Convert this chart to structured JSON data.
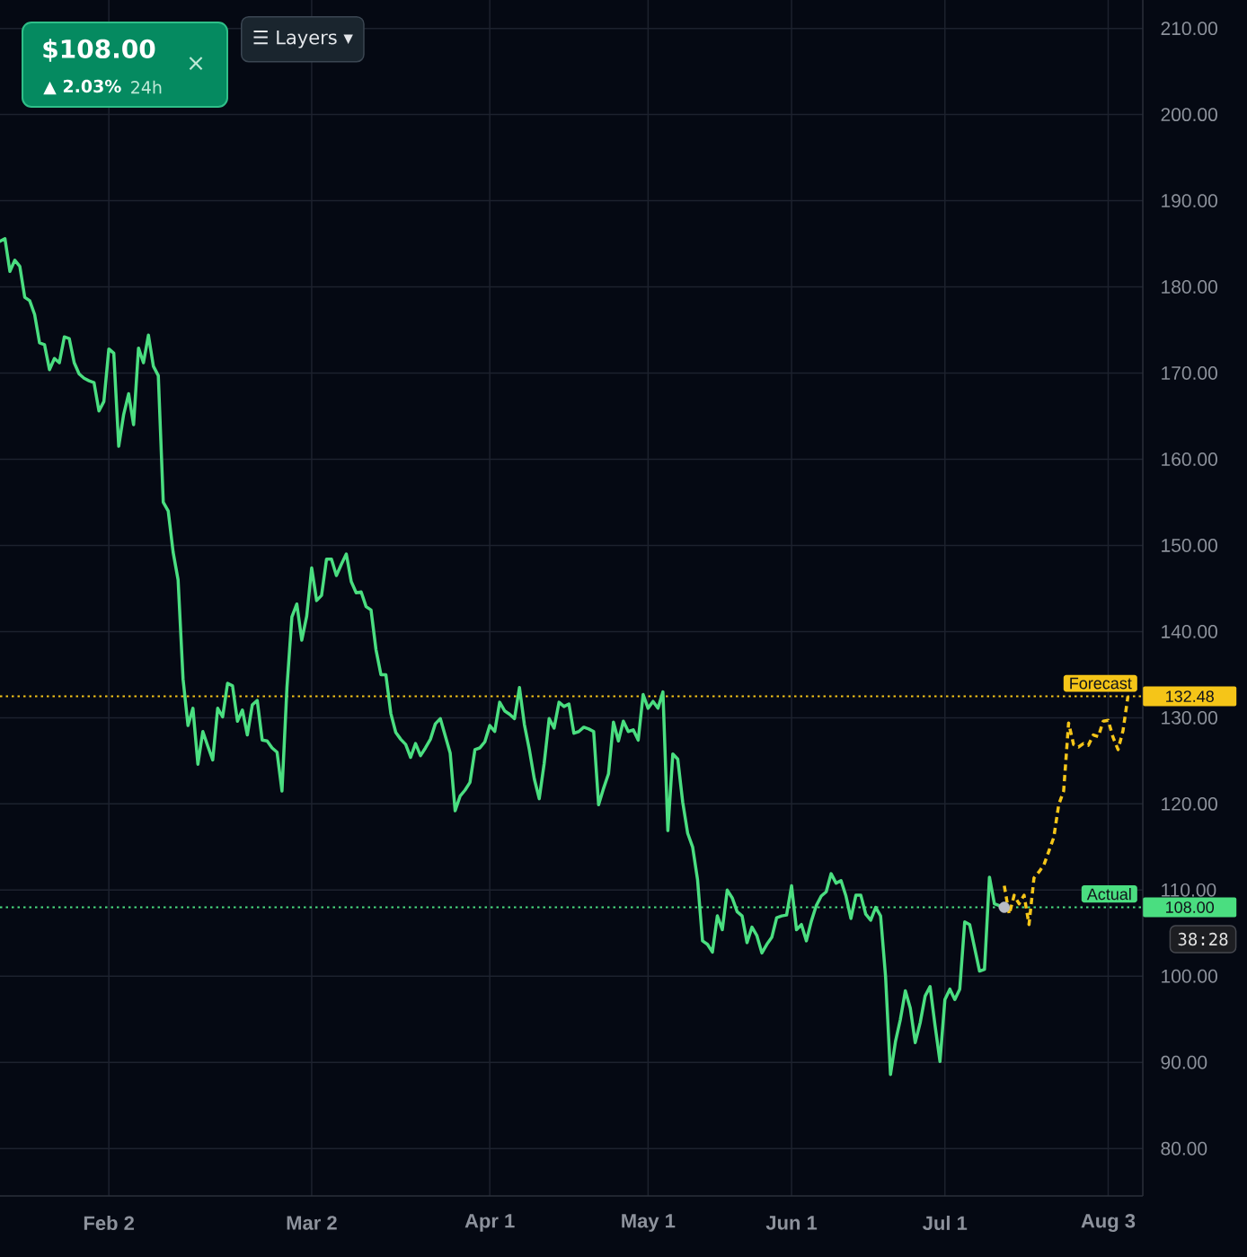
{
  "chart_data": {
    "type": "line",
    "categories": [
      null,
      null,
      null,
      null,
      null,
      null,
      null,
      null,
      null,
      null,
      null,
      null,
      null,
      null,
      null,
      null,
      null,
      null,
      null,
      null,
      null,
      null,
      "Feb 2",
      null,
      null,
      null,
      null,
      null,
      null,
      null,
      null,
      null,
      null,
      null,
      null,
      null,
      null,
      null,
      null,
      null,
      null,
      null,
      null,
      null,
      null,
      null,
      null,
      null,
      null,
      null,
      null,
      null,
      null,
      null,
      null,
      null,
      null,
      null,
      null,
      null,
      null,
      null,
      null,
      "Mar 2",
      null,
      null,
      null,
      null,
      null,
      null,
      null,
      null,
      null,
      null,
      null,
      null,
      null,
      null,
      null,
      null,
      null,
      null,
      null,
      null,
      null,
      null,
      null,
      null,
      null,
      null,
      null,
      null,
      null,
      null,
      null,
      null,
      null,
      null,
      null,
      "Apr 1",
      null,
      null,
      null,
      null,
      null,
      null,
      null,
      null,
      null,
      null,
      null,
      null,
      null,
      null,
      null,
      null,
      null,
      null,
      null,
      null,
      null,
      null,
      null,
      null,
      null,
      null,
      null,
      null,
      null,
      null,
      null,
      "May 1",
      null,
      null,
      null,
      null,
      null,
      null,
      null,
      null,
      null,
      null,
      null,
      null,
      null,
      null,
      null,
      null,
      null,
      null,
      null,
      null,
      null,
      null,
      null,
      null,
      null,
      null,
      null,
      null,
      "Jun 1",
      null,
      null,
      null,
      null,
      null,
      null,
      null,
      null,
      null,
      null,
      null,
      null,
      null,
      null,
      null,
      null,
      null,
      null,
      null,
      null,
      null,
      null,
      null,
      null,
      null,
      null,
      null,
      null,
      null,
      null,
      "Jul 1",
      null,
      null,
      null,
      null,
      null,
      null,
      null,
      null,
      null,
      null,
      null,
      null,
      null,
      null,
      null,
      null,
      null,
      null,
      null,
      null,
      null,
      null,
      null,
      null,
      null,
      null,
      null,
      null,
      null,
      null,
      null,
      null,
      "Aug 3",
      null,
      null,
      null,
      null,
      null,
      null,
      null
    ],
    "ylim": [
      74.5,
      213.3
    ],
    "yticks": [
      {
        "value": 80,
        "label": "80.00"
      },
      {
        "value": 90,
        "label": "90.00"
      },
      {
        "value": 100,
        "label": "100.00"
      },
      {
        "value": 110,
        "label": "110.00"
      },
      {
        "value": 120,
        "label": "120.00"
      },
      {
        "value": 130,
        "label": "130.00"
      },
      {
        "value": 140,
        "label": "140.00"
      },
      {
        "value": 150,
        "label": "150.00"
      },
      {
        "value": 160,
        "label": "160.00"
      },
      {
        "value": 170,
        "label": "170.00"
      },
      {
        "value": 180,
        "label": "180.00"
      },
      {
        "value": 190,
        "label": "190.00"
      },
      {
        "value": 200,
        "label": "200.00"
      },
      {
        "value": 210,
        "label": "210.00"
      }
    ],
    "grid": true,
    "series": [
      {
        "color": "#4ade80",
        "line_style": "solid",
        "values": [
          185.3,
          185.6,
          181.8,
          183.1,
          182.4,
          178.8,
          178.4,
          176.8,
          173.5,
          173.3,
          170.4,
          171.7,
          171.2,
          174.2,
          174.0,
          171.2,
          169.9,
          169.4,
          169.1,
          168.9,
          165.6,
          166.7,
          172.8,
          172.3,
          161.5,
          165.2,
          167.6,
          164.0,
          172.9,
          171.2,
          174.4,
          170.8,
          169.7,
          155.0,
          154.0,
          149.2,
          146.0,
          134.5,
          129.1,
          131.1,
          124.6,
          128.4,
          126.7,
          125.1,
          131.1,
          130.1,
          134.0,
          133.7,
          129.6,
          130.9,
          128.0,
          131.5,
          132.0,
          127.4,
          127.3,
          126.5,
          126.0,
          121.5,
          133.5,
          141.7,
          143.2,
          139.0,
          141.8,
          147.4,
          143.6,
          144.2,
          148.4,
          148.4,
          146.5,
          147.8,
          149.0,
          145.8,
          144.5,
          144.6,
          142.9,
          142.5,
          137.9,
          135.0,
          135.0,
          130.5,
          128.3,
          127.5,
          126.9,
          125.4,
          127.0,
          125.6,
          126.5,
          127.5,
          129.3,
          129.9,
          127.9,
          125.9,
          119.2,
          120.9,
          121.6,
          122.5,
          126.3,
          126.5,
          127.2,
          129.1,
          128.4,
          131.8,
          130.8,
          130.4,
          129.9,
          133.5,
          129.2,
          126.3,
          122.9,
          120.6,
          124.7,
          129.9,
          128.8,
          131.8,
          131.3,
          131.6,
          128.2,
          128.4,
          128.9,
          128.7,
          128.4,
          119.9,
          121.8,
          123.5,
          129.5,
          127.3,
          129.6,
          128.4,
          128.6,
          127.4,
          132.7,
          131.1,
          131.9,
          131.1,
          133.0,
          116.9,
          125.8,
          125.2,
          120.2,
          116.6,
          115.0,
          111.2,
          104.1,
          103.7,
          102.8,
          107.0,
          105.4,
          110.0,
          109.1,
          107.5,
          107.0,
          103.9,
          105.7,
          104.7,
          102.7,
          103.7,
          104.5,
          106.8,
          107.0,
          107.1,
          110.5,
          105.4,
          106.0,
          104.1,
          106.4,
          108.2,
          109.3,
          109.8,
          111.9,
          110.8,
          111.1,
          109.3,
          106.7,
          109.4,
          109.4,
          107.2,
          106.5,
          108.0,
          107.0,
          100.0,
          88.6,
          92.4,
          95.0,
          98.3,
          96.3,
          92.3,
          94.6,
          97.7,
          98.8,
          94.3,
          90.1,
          97.3,
          98.5,
          97.3,
          98.5,
          106.3,
          106.0,
          103.3,
          100.6,
          100.8,
          111.5,
          108.4,
          108.2,
          108.0,
          null,
          null,
          null,
          null,
          null,
          null,
          null,
          null,
          null,
          null,
          null,
          null,
          null,
          null,
          null,
          null,
          null,
          null,
          null,
          null,
          null,
          null,
          null,
          null,
          null,
          null,
          null,
          null
        ]
      },
      {
        "type": "scatter",
        "color": "#b9bcc5",
        "marker": "circle",
        "values": [
          null,
          null,
          null,
          null,
          null,
          null,
          null,
          null,
          null,
          null,
          null,
          null,
          null,
          null,
          null,
          null,
          null,
          null,
          null,
          null,
          null,
          null,
          null,
          null,
          null,
          null,
          null,
          null,
          null,
          null,
          null,
          null,
          null,
          null,
          null,
          null,
          null,
          null,
          null,
          null,
          null,
          null,
          null,
          null,
          null,
          null,
          null,
          null,
          null,
          null,
          null,
          null,
          null,
          null,
          null,
          null,
          null,
          null,
          null,
          null,
          null,
          null,
          null,
          null,
          null,
          null,
          null,
          null,
          null,
          null,
          null,
          null,
          null,
          null,
          null,
          null,
          null,
          null,
          null,
          null,
          null,
          null,
          null,
          null,
          null,
          null,
          null,
          null,
          null,
          null,
          null,
          null,
          null,
          null,
          null,
          null,
          null,
          null,
          null,
          null,
          null,
          null,
          null,
          null,
          null,
          null,
          null,
          null,
          null,
          null,
          null,
          null,
          null,
          null,
          null,
          null,
          null,
          null,
          null,
          null,
          null,
          null,
          null,
          null,
          null,
          null,
          null,
          null,
          null,
          null,
          null,
          null,
          null,
          null,
          null,
          null,
          null,
          null,
          null,
          null,
          null,
          null,
          null,
          null,
          null,
          null,
          null,
          null,
          null,
          null,
          null,
          null,
          null,
          null,
          null,
          null,
          null,
          null,
          null,
          null,
          null,
          null,
          null,
          null,
          null,
          null,
          null,
          null,
          null,
          null,
          null,
          null,
          null,
          null,
          null,
          null,
          null,
          null,
          null,
          null,
          null,
          null,
          null,
          null,
          null,
          null,
          null,
          null,
          null,
          null,
          null,
          null,
          null,
          null,
          null,
          null,
          null,
          null,
          null,
          null,
          null,
          null,
          null,
          108.0,
          null,
          null,
          null,
          null,
          null,
          null,
          null,
          null,
          null,
          null,
          null,
          null,
          null,
          null,
          null,
          null,
          null,
          null,
          null,
          null,
          null,
          null,
          null,
          null,
          null,
          null,
          null,
          null
        ]
      },
      {
        "color": "#f5c518",
        "line_style": "dashed",
        "values": [
          null,
          null,
          null,
          null,
          null,
          null,
          null,
          null,
          null,
          null,
          null,
          null,
          null,
          null,
          null,
          null,
          null,
          null,
          null,
          null,
          null,
          null,
          null,
          null,
          null,
          null,
          null,
          null,
          null,
          null,
          null,
          null,
          null,
          null,
          null,
          null,
          null,
          null,
          null,
          null,
          null,
          null,
          null,
          null,
          null,
          null,
          null,
          null,
          null,
          null,
          null,
          null,
          null,
          null,
          null,
          null,
          null,
          null,
          null,
          null,
          null,
          null,
          null,
          null,
          null,
          null,
          null,
          null,
          null,
          null,
          null,
          null,
          null,
          null,
          null,
          null,
          null,
          null,
          null,
          null,
          null,
          null,
          null,
          null,
          null,
          null,
          null,
          null,
          null,
          null,
          null,
          null,
          null,
          null,
          null,
          null,
          null,
          null,
          null,
          null,
          null,
          null,
          null,
          null,
          null,
          null,
          null,
          null,
          null,
          null,
          null,
          null,
          null,
          null,
          null,
          null,
          null,
          null,
          null,
          null,
          null,
          null,
          null,
          null,
          null,
          null,
          null,
          null,
          null,
          null,
          null,
          null,
          null,
          null,
          null,
          null,
          null,
          null,
          null,
          null,
          null,
          null,
          null,
          null,
          null,
          null,
          null,
          null,
          null,
          null,
          null,
          null,
          null,
          null,
          null,
          null,
          null,
          null,
          null,
          null,
          null,
          null,
          null,
          null,
          null,
          null,
          null,
          null,
          null,
          null,
          null,
          null,
          null,
          null,
          null,
          null,
          null,
          null,
          null,
          null,
          null,
          null,
          null,
          null,
          null,
          null,
          null,
          null,
          null,
          null,
          null,
          null,
          null,
          null,
          null,
          null,
          null,
          null,
          null,
          null,
          null,
          null,
          null,
          110.5,
          107.2,
          109.4,
          108.4,
          109.4,
          106.0,
          111.4,
          112.1,
          112.9,
          114.5,
          116.1,
          119.9,
          121.5,
          129.4,
          126.9,
          126.6,
          127.0,
          126.8,
          128.0,
          127.8,
          129.6,
          129.7,
          127.7,
          126.3,
          128.5,
          132.5,
          null,
          null,
          null
        ]
      }
    ],
    "ref_lines": [
      {
        "axis": "y",
        "value": 132.48,
        "label": "Forecast",
        "color": "#f5c518",
        "line_style": "dotted"
      },
      {
        "axis": "y",
        "value": 108.0,
        "label": "Actual",
        "color": "#4ade80",
        "line_style": "dotted"
      }
    ],
    "annotations": [
      "$108.00",
      "▲ 2.03%",
      "24h",
      "×",
      "☰ Layers ▾",
      "38:28",
      "132.48",
      "108.00"
    ]
  }
}
